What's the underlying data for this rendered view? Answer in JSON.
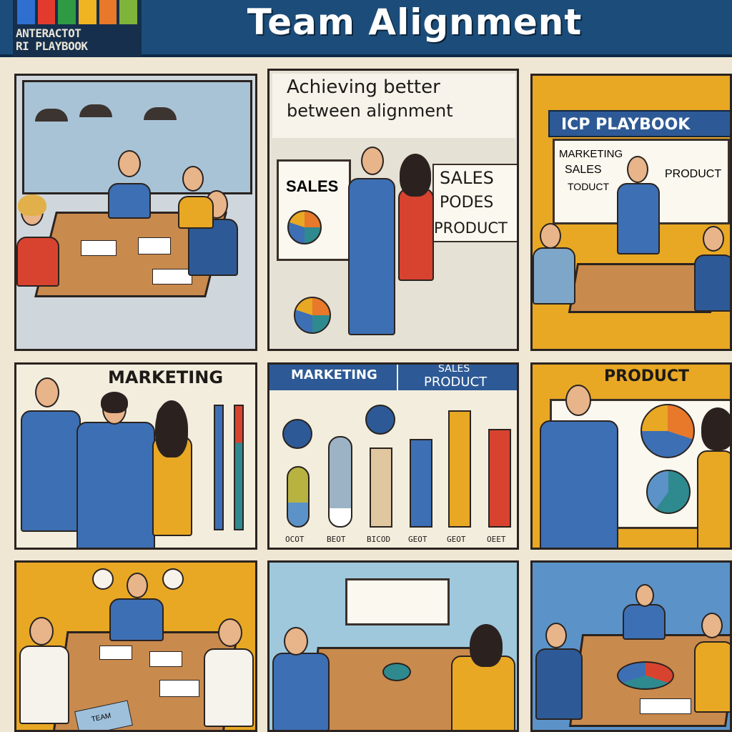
{
  "header": {
    "logo_text": "ANTERACTOT\nRI PLAYBOOK",
    "logo_colors": [
      "#2e6fd0",
      "#e23b2e",
      "#2f9a44",
      "#f0b321",
      "#e8782a",
      "#7fb43a"
    ],
    "title": "Team Alignment"
  },
  "panels": {
    "p2": {
      "caption_line1": "Achieving better",
      "caption_line2": "between alignment",
      "easel_label": "SALES",
      "sign_lines": [
        "SALES",
        "PODES",
        "PRODUCT"
      ]
    },
    "p3": {
      "banner": "ICP PLAYBOOK",
      "board_words": [
        "MARKETING",
        "SALES",
        "TODUCT",
        "PRODUCT"
      ]
    },
    "p4": {
      "label": "MARKETING"
    },
    "p5": {
      "tab_left": "MARKETING",
      "tab_right_top": "SALES",
      "tab_right_bottom": "PRODUCT",
      "ticks": [
        "OCOT",
        "BEOT",
        "BICOD",
        "GEOT",
        "GEOT",
        "OEET"
      ]
    },
    "p6": {
      "label": "PRODUCT"
    },
    "p7": {
      "laptop_text": "TEAM"
    }
  },
  "colors": {
    "navy": "#1c4d7a",
    "mustard": "#e8a824",
    "teal": "#2f8a8f",
    "red": "#d8432f",
    "blue_suit": "#3d6fb4"
  }
}
